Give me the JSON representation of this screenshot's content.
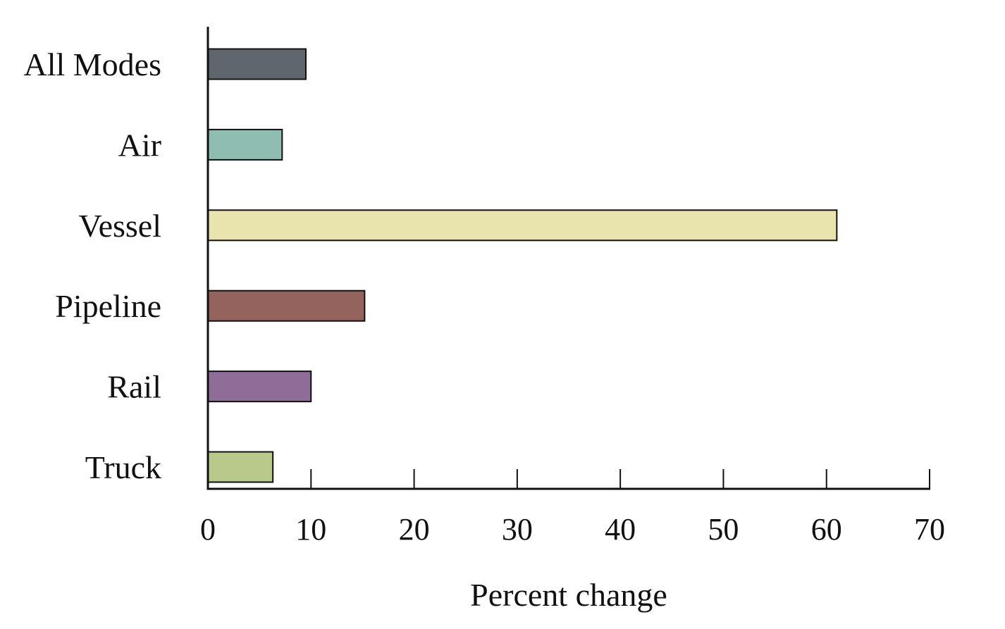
{
  "chart_data": {
    "type": "bar",
    "orientation": "horizontal",
    "categories": [
      "All Modes",
      "Air",
      "Vessel",
      "Pipeline",
      "Rail",
      "Truck"
    ],
    "values": [
      9.5,
      7.2,
      61.0,
      15.2,
      10.0,
      6.3
    ],
    "colors": [
      "#5f666d",
      "#8fbdb2",
      "#e9e3ae",
      "#94635d",
      "#8e6e98",
      "#b8c98b"
    ],
    "title": "",
    "xlabel": "Percent change",
    "ylabel": "",
    "xlim": [
      0,
      70
    ],
    "xticks": [
      0,
      10,
      20,
      30,
      40,
      50,
      60,
      70
    ],
    "grid": false,
    "legend": "none"
  }
}
